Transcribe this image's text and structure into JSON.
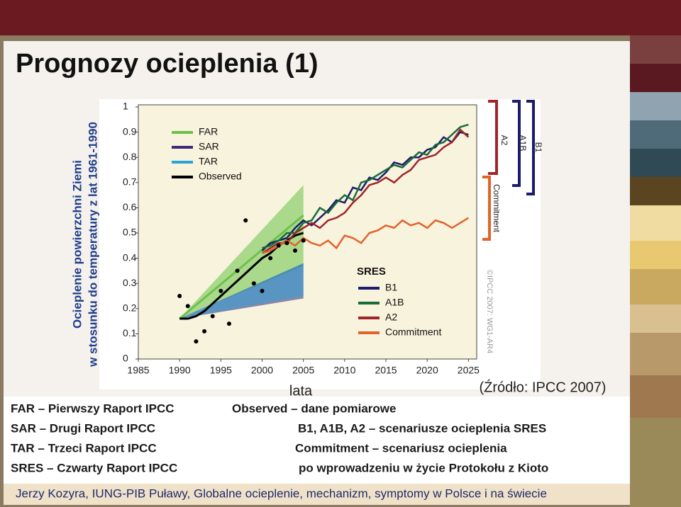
{
  "slide": {
    "title": "Prognozy ocieplenia (1)",
    "source": "(Źródło: IPCC 2007)",
    "notes_left": [
      "FAR – Pierwszy Raport IPCC",
      "SAR – Drugi Raport IPCC",
      "TAR – Trzeci Raport IPCC",
      "SRES – Czwarty Raport IPCC"
    ],
    "notes_right": [
      "Observed – dane pomiarowe",
      "B1, A1B, A2 – scenariusze ocieplenia SRES",
      "Commitment – scenariusz ocieplenia",
      "po wprowadzeniu w życie Protokołu z Kioto"
    ],
    "footer": "Jerzy Kozyra, IUNG-PIB Puławy, Globalne ocieplenie, mechanizm, symptomy w Polsce i na świecie"
  },
  "chart_data": {
    "type": "line",
    "ylabel": [
      "Ocieplenie powierzchni Ziemi",
      "w stosunku do temperatury z lat 1961-1990"
    ],
    "xlabel": "lata",
    "xlim": [
      1985,
      2026
    ],
    "xticks": [
      1985,
      1990,
      1995,
      2000,
      2005,
      2010,
      2015,
      2020,
      2025
    ],
    "ylim": [
      0,
      1
    ],
    "yticks": [
      0,
      0.1,
      0.2,
      0.3,
      0.4,
      0.5,
      0.6,
      0.7,
      0.8,
      0.9,
      1
    ],
    "bands": [
      {
        "name": "FAR",
        "color": "#6cc24a",
        "x": [
          1990,
          2005
        ],
        "low": [
          0.16,
          0.37
        ],
        "high": [
          0.16,
          0.69
        ],
        "mid": [
          0.16,
          0.57
        ]
      },
      {
        "name": "SAR",
        "color": "#3d2a7a",
        "x": [
          1990,
          2005
        ],
        "low": [
          0.16,
          0.24
        ],
        "high": [
          0.16,
          0.38
        ]
      },
      {
        "name": "TAR",
        "color": "#2aa3d8",
        "x": [
          1990,
          2005
        ],
        "low": [
          0.16,
          0.25
        ],
        "high": [
          0.16,
          0.38
        ]
      }
    ],
    "series": [
      {
        "name": "Observed",
        "color": "#000000",
        "x": [
          1990,
          1991,
          1992,
          1993,
          1994,
          1995,
          1996,
          1997,
          1998,
          1999,
          2000,
          2001,
          2002,
          2003,
          2004,
          2005
        ],
        "values": [
          0.16,
          0.16,
          0.17,
          0.19,
          0.22,
          0.25,
          0.28,
          0.31,
          0.34,
          0.37,
          0.4,
          0.42,
          0.45,
          0.47,
          0.49,
          0.5
        ]
      },
      {
        "name": "B1",
        "color": "#1c1c6b",
        "x": [
          2000,
          2001,
          2002,
          2003,
          2004,
          2005,
          2006,
          2007,
          2008,
          2009,
          2010,
          2011,
          2012,
          2013,
          2014,
          2015,
          2016,
          2017,
          2018,
          2019,
          2020,
          2021,
          2022,
          2023,
          2024,
          2025
        ],
        "values": [
          0.43,
          0.46,
          0.47,
          0.48,
          0.52,
          0.55,
          0.53,
          0.56,
          0.59,
          0.63,
          0.62,
          0.68,
          0.67,
          0.72,
          0.71,
          0.74,
          0.78,
          0.77,
          0.8,
          0.8,
          0.83,
          0.84,
          0.88,
          0.86,
          0.9,
          0.89
        ]
      },
      {
        "name": "A1B",
        "color": "#1a6b3a",
        "x": [
          2000,
          2001,
          2002,
          2003,
          2004,
          2005,
          2006,
          2007,
          2008,
          2009,
          2010,
          2011,
          2012,
          2013,
          2014,
          2015,
          2016,
          2017,
          2018,
          2019,
          2020,
          2021,
          2022,
          2023,
          2024,
          2025
        ],
        "values": [
          0.44,
          0.45,
          0.47,
          0.5,
          0.5,
          0.54,
          0.55,
          0.6,
          0.58,
          0.62,
          0.65,
          0.63,
          0.7,
          0.71,
          0.73,
          0.75,
          0.77,
          0.76,
          0.79,
          0.82,
          0.81,
          0.85,
          0.86,
          0.89,
          0.92,
          0.93
        ]
      },
      {
        "name": "A2",
        "color": "#a0242b",
        "x": [
          2000,
          2001,
          2002,
          2003,
          2004,
          2005,
          2006,
          2007,
          2008,
          2009,
          2010,
          2011,
          2012,
          2013,
          2014,
          2015,
          2016,
          2017,
          2018,
          2019,
          2020,
          2021,
          2022,
          2023,
          2024,
          2025
        ],
        "values": [
          0.42,
          0.44,
          0.46,
          0.46,
          0.5,
          0.52,
          0.54,
          0.52,
          0.55,
          0.56,
          0.58,
          0.62,
          0.65,
          0.69,
          0.7,
          0.72,
          0.7,
          0.73,
          0.75,
          0.79,
          0.8,
          0.81,
          0.84,
          0.86,
          0.91,
          0.88
        ]
      },
      {
        "name": "Commitment",
        "color": "#e2622c",
        "x": [
          2000,
          2001,
          2002,
          2003,
          2004,
          2005,
          2006,
          2007,
          2008,
          2009,
          2010,
          2011,
          2012,
          2013,
          2014,
          2015,
          2016,
          2017,
          2018,
          2019,
          2020,
          2021,
          2022,
          2023,
          2024,
          2025
        ],
        "values": [
          0.42,
          0.43,
          0.45,
          0.47,
          0.45,
          0.48,
          0.46,
          0.45,
          0.47,
          0.44,
          0.49,
          0.48,
          0.46,
          0.5,
          0.51,
          0.53,
          0.52,
          0.55,
          0.53,
          0.54,
          0.52,
          0.55,
          0.54,
          0.52,
          0.54,
          0.56
        ]
      }
    ],
    "observations": {
      "color": "#000000",
      "x": [
        1990,
        1991,
        1992,
        1993,
        1994,
        1995,
        1996,
        1997,
        1998,
        1999,
        2000,
        2001,
        2002,
        2003,
        2004,
        2005
      ],
      "values": [
        0.25,
        0.21,
        0.07,
        0.11,
        0.17,
        0.27,
        0.14,
        0.35,
        0.55,
        0.3,
        0.27,
        0.4,
        0.45,
        0.46,
        0.43,
        0.47
      ]
    },
    "legend_title": "SRES",
    "annotations": [
      "A2",
      "A1B",
      "B1",
      "Commitment",
      "©IPCC 2007: WG1-AR4"
    ]
  }
}
